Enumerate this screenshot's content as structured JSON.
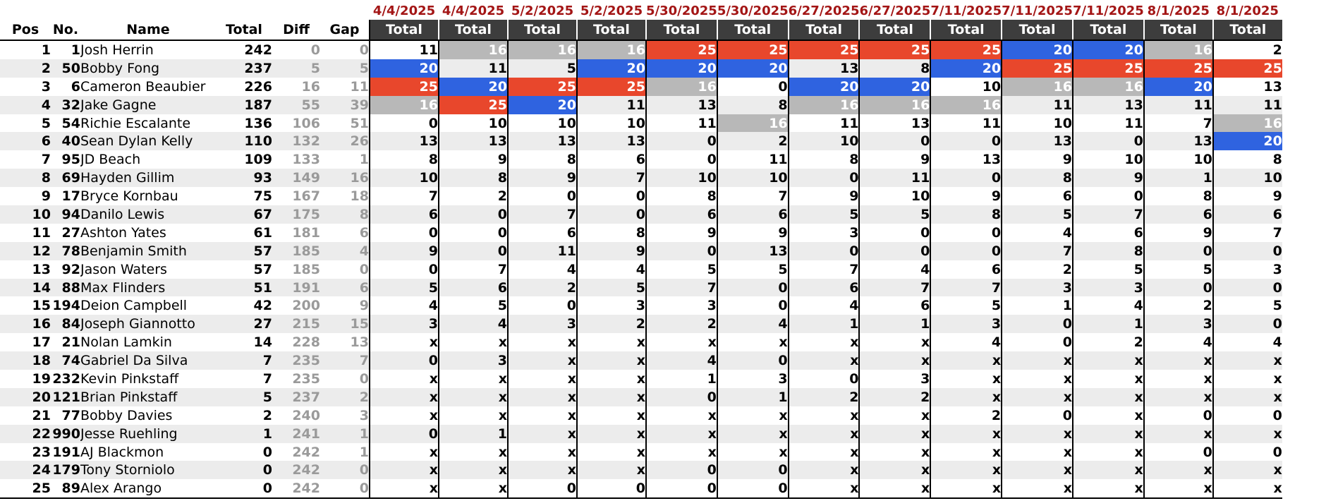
{
  "headers": {
    "pos": "Pos",
    "no": "No.",
    "name": "Name",
    "total": "Total",
    "diff": "Diff",
    "gap": "Gap",
    "race_total": "Total"
  },
  "race_dates": [
    "4/4/2025",
    "4/4/2025",
    "5/2/2025",
    "5/2/2025",
    "5/30/2025",
    "5/30/2025",
    "6/27/2025",
    "6/27/2025",
    "7/11/2025",
    "7/11/2025",
    "7/11/2025",
    "8/1/2025",
    "8/1/2025"
  ],
  "colors": {
    "first_place": "#e8472c",
    "second_place": "#2f63e0",
    "third_place": "#b8b8b8",
    "date_text": "#a31515",
    "header_bg": "#3d3d3d"
  },
  "rows": [
    {
      "pos": "1",
      "no": "1",
      "name": "Josh Herrin",
      "total": "242",
      "diff": "0",
      "gap": "0",
      "results": [
        "11",
        "16",
        "16",
        "16",
        "25",
        "25",
        "25",
        "25",
        "25",
        "20",
        "20",
        "16",
        "2"
      ]
    },
    {
      "pos": "2",
      "no": "50",
      "name": "Bobby Fong",
      "total": "237",
      "diff": "5",
      "gap": "5",
      "results": [
        "20",
        "11",
        "5",
        "20",
        "20",
        "20",
        "13",
        "8",
        "20",
        "25",
        "25",
        "25",
        "25"
      ]
    },
    {
      "pos": "3",
      "no": "6",
      "name": "Cameron Beaubier",
      "total": "226",
      "diff": "16",
      "gap": "11",
      "results": [
        "25",
        "20",
        "25",
        "25",
        "16",
        "0",
        "20",
        "20",
        "10",
        "16",
        "16",
        "20",
        "13"
      ]
    },
    {
      "pos": "4",
      "no": "32",
      "name": "Jake Gagne",
      "total": "187",
      "diff": "55",
      "gap": "39",
      "results": [
        "16",
        "25",
        "20",
        "11",
        "13",
        "8",
        "16",
        "16",
        "16",
        "11",
        "13",
        "11",
        "11"
      ]
    },
    {
      "pos": "5",
      "no": "54",
      "name": "Richie Escalante",
      "total": "136",
      "diff": "106",
      "gap": "51",
      "results": [
        "0",
        "10",
        "10",
        "10",
        "11",
        "16",
        "11",
        "13",
        "11",
        "10",
        "11",
        "7",
        "16"
      ]
    },
    {
      "pos": "6",
      "no": "40",
      "name": "Sean Dylan Kelly",
      "total": "110",
      "diff": "132",
      "gap": "26",
      "results": [
        "13",
        "13",
        "13",
        "13",
        "0",
        "2",
        "10",
        "0",
        "0",
        "13",
        "0",
        "13",
        "20"
      ]
    },
    {
      "pos": "7",
      "no": "95",
      "name": "JD Beach",
      "total": "109",
      "diff": "133",
      "gap": "1",
      "results": [
        "8",
        "9",
        "8",
        "6",
        "0",
        "11",
        "8",
        "9",
        "13",
        "9",
        "10",
        "10",
        "8"
      ]
    },
    {
      "pos": "8",
      "no": "69",
      "name": "Hayden Gillim",
      "total": "93",
      "diff": "149",
      "gap": "16",
      "results": [
        "10",
        "8",
        "9",
        "7",
        "10",
        "10",
        "0",
        "11",
        "0",
        "8",
        "9",
        "1",
        "10"
      ]
    },
    {
      "pos": "9",
      "no": "17",
      "name": "Bryce Kornbau",
      "total": "75",
      "diff": "167",
      "gap": "18",
      "results": [
        "7",
        "2",
        "0",
        "0",
        "8",
        "7",
        "9",
        "10",
        "9",
        "6",
        "0",
        "8",
        "9"
      ]
    },
    {
      "pos": "10",
      "no": "94",
      "name": "Danilo Lewis",
      "total": "67",
      "diff": "175",
      "gap": "8",
      "results": [
        "6",
        "0",
        "7",
        "0",
        "6",
        "6",
        "5",
        "5",
        "8",
        "5",
        "7",
        "6",
        "6"
      ]
    },
    {
      "pos": "11",
      "no": "27",
      "name": "Ashton Yates",
      "total": "61",
      "diff": "181",
      "gap": "6",
      "results": [
        "0",
        "0",
        "6",
        "8",
        "9",
        "9",
        "3",
        "0",
        "0",
        "4",
        "6",
        "9",
        "7"
      ]
    },
    {
      "pos": "12",
      "no": "78",
      "name": "Benjamin Smith",
      "total": "57",
      "diff": "185",
      "gap": "4",
      "results": [
        "9",
        "0",
        "11",
        "9",
        "0",
        "13",
        "0",
        "0",
        "0",
        "7",
        "8",
        "0",
        "0"
      ]
    },
    {
      "pos": "13",
      "no": "92",
      "name": "Jason Waters",
      "total": "57",
      "diff": "185",
      "gap": "0",
      "results": [
        "0",
        "7",
        "4",
        "4",
        "5",
        "5",
        "7",
        "4",
        "6",
        "2",
        "5",
        "5",
        "3"
      ]
    },
    {
      "pos": "14",
      "no": "88",
      "name": "Max Flinders",
      "total": "51",
      "diff": "191",
      "gap": "6",
      "results": [
        "5",
        "6",
        "2",
        "5",
        "7",
        "0",
        "6",
        "7",
        "7",
        "3",
        "3",
        "0",
        "0"
      ]
    },
    {
      "pos": "15",
      "no": "194",
      "name": "Deion Campbell",
      "total": "42",
      "diff": "200",
      "gap": "9",
      "results": [
        "4",
        "5",
        "0",
        "3",
        "3",
        "0",
        "4",
        "6",
        "5",
        "1",
        "4",
        "2",
        "5"
      ]
    },
    {
      "pos": "16",
      "no": "84",
      "name": "Joseph Giannotto",
      "total": "27",
      "diff": "215",
      "gap": "15",
      "results": [
        "3",
        "4",
        "3",
        "2",
        "2",
        "4",
        "1",
        "1",
        "3",
        "0",
        "1",
        "3",
        "0"
      ]
    },
    {
      "pos": "17",
      "no": "21",
      "name": "Nolan Lamkin",
      "total": "14",
      "diff": "228",
      "gap": "13",
      "results": [
        "x",
        "x",
        "x",
        "x",
        "x",
        "x",
        "x",
        "x",
        "4",
        "0",
        "2",
        "4",
        "4"
      ]
    },
    {
      "pos": "18",
      "no": "74",
      "name": "Gabriel Da Silva",
      "total": "7",
      "diff": "235",
      "gap": "7",
      "results": [
        "0",
        "3",
        "x",
        "x",
        "4",
        "0",
        "x",
        "x",
        "x",
        "x",
        "x",
        "x",
        "x"
      ]
    },
    {
      "pos": "19",
      "no": "232",
      "name": "Kevin Pinkstaff",
      "total": "7",
      "diff": "235",
      "gap": "0",
      "results": [
        "x",
        "x",
        "x",
        "x",
        "1",
        "3",
        "0",
        "3",
        "x",
        "x",
        "x",
        "x",
        "x"
      ]
    },
    {
      "pos": "20",
      "no": "121",
      "name": "Brian Pinkstaff",
      "total": "5",
      "diff": "237",
      "gap": "2",
      "results": [
        "x",
        "x",
        "x",
        "x",
        "0",
        "1",
        "2",
        "2",
        "x",
        "x",
        "x",
        "x",
        "x"
      ]
    },
    {
      "pos": "21",
      "no": "77",
      "name": "Bobby Davies",
      "total": "2",
      "diff": "240",
      "gap": "3",
      "results": [
        "x",
        "x",
        "x",
        "x",
        "x",
        "x",
        "x",
        "x",
        "2",
        "0",
        "x",
        "0",
        "0"
      ]
    },
    {
      "pos": "22",
      "no": "990",
      "name": "Jesse Ruehling",
      "total": "1",
      "diff": "241",
      "gap": "1",
      "results": [
        "0",
        "1",
        "x",
        "x",
        "x",
        "x",
        "x",
        "x",
        "x",
        "x",
        "x",
        "x",
        "x"
      ]
    },
    {
      "pos": "23",
      "no": "191",
      "name": "AJ Blackmon",
      "total": "0",
      "diff": "242",
      "gap": "1",
      "results": [
        "x",
        "x",
        "x",
        "x",
        "x",
        "x",
        "x",
        "x",
        "x",
        "x",
        "x",
        "0",
        "0"
      ]
    },
    {
      "pos": "24",
      "no": "179",
      "name": "Tony Storniolo",
      "total": "0",
      "diff": "242",
      "gap": "0",
      "results": [
        "x",
        "x",
        "x",
        "x",
        "0",
        "0",
        "x",
        "x",
        "x",
        "x",
        "x",
        "x",
        "x"
      ]
    },
    {
      "pos": "25",
      "no": "89",
      "name": "Alex Arango",
      "total": "0",
      "diff": "242",
      "gap": "0",
      "results": [
        "x",
        "x",
        "0",
        "0",
        "0",
        "0",
        "x",
        "x",
        "x",
        "x",
        "x",
        "x",
        "x"
      ]
    }
  ]
}
